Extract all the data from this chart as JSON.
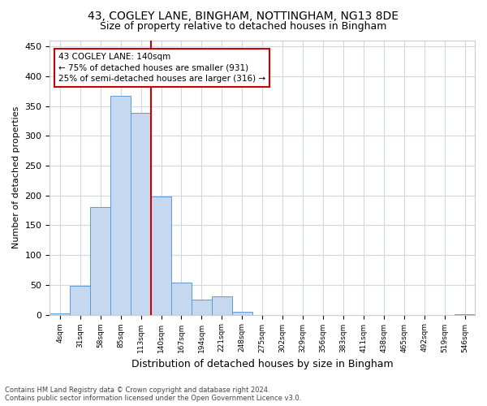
{
  "title_line1": "43, COGLEY LANE, BINGHAM, NOTTINGHAM, NG13 8DE",
  "title_line2": "Size of property relative to detached houses in Bingham",
  "xlabel": "Distribution of detached houses by size in Bingham",
  "ylabel": "Number of detached properties",
  "footer_line1": "Contains HM Land Registry data © Crown copyright and database right 2024.",
  "footer_line2": "Contains public sector information licensed under the Open Government Licence v3.0.",
  "bin_labels": [
    "4sqm",
    "31sqm",
    "58sqm",
    "85sqm",
    "113sqm",
    "140sqm",
    "167sqm",
    "194sqm",
    "221sqm",
    "248sqm",
    "275sqm",
    "302sqm",
    "329sqm",
    "356sqm",
    "383sqm",
    "411sqm",
    "438sqm",
    "465sqm",
    "492sqm",
    "519sqm",
    "546sqm"
  ],
  "bar_heights": [
    2,
    49,
    181,
    367,
    339,
    199,
    54,
    25,
    31,
    5,
    0,
    0,
    0,
    0,
    0,
    0,
    0,
    0,
    0,
    0,
    1
  ],
  "bar_color": "#c5d8f0",
  "bar_edge_color": "#5b9bd5",
  "vline_x": 4.5,
  "vline_color": "#cc0000",
  "annotation_text": "43 COGLEY LANE: 140sqm\n← 75% of detached houses are smaller (931)\n25% of semi-detached houses are larger (316) →",
  "annotation_box_color": "#ffffff",
  "annotation_box_edge_color": "#cc0000",
  "ylim": [
    0,
    460
  ],
  "yticks": [
    0,
    50,
    100,
    150,
    200,
    250,
    300,
    350,
    400,
    450
  ],
  "background_color": "#ffffff",
  "plot_background_color": "#ffffff",
  "grid_color": "#d0d8e8",
  "title_fontsize": 10,
  "subtitle_fontsize": 9,
  "title_fontweight": "normal"
}
